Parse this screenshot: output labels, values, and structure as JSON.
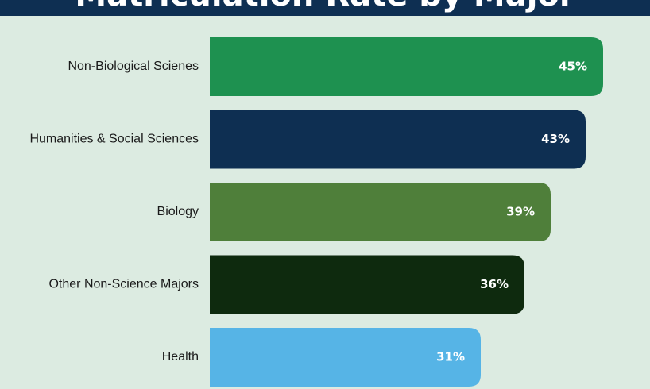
{
  "chart_data": {
    "type": "bar",
    "orientation": "horizontal",
    "title": "Matriculation Rate by Major",
    "categories": [
      "Non-Biological Scienes",
      "Humanities & Social Sciences",
      "Biology",
      "Other Non-Science Majors",
      "Health"
    ],
    "values": [
      45,
      43,
      39,
      36,
      31
    ],
    "value_labels": [
      "45%",
      "43%",
      "39%",
      "36%",
      "31%"
    ],
    "colors": [
      "#1e9150",
      "#0e2f52",
      "#4f7f3a",
      "#0e2a0e",
      "#56b4e6"
    ],
    "unit": "%",
    "grid": false,
    "legend": "none"
  }
}
